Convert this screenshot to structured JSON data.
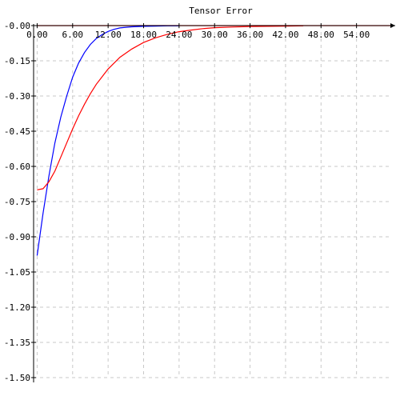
{
  "chart_data": {
    "type": "line",
    "title": "Tensor Error",
    "xlabel": "",
    "ylabel": "",
    "xlim": [
      -0.6,
      60.0
    ],
    "ylim": [
      -1.5,
      0.0
    ],
    "grid": true,
    "x_ticks": [
      0,
      6,
      12,
      18,
      24,
      30,
      36,
      42,
      48,
      54
    ],
    "x_tick_labels": [
      "0.00",
      "6.00",
      "12.00",
      "18.00",
      "24.00",
      "30.00",
      "36.00",
      "42.00",
      "48.00",
      "54.00"
    ],
    "y_ticks": [
      -0.0,
      -0.15,
      -0.3,
      -0.45,
      -0.6,
      -0.75,
      -0.9,
      -1.05,
      -1.2,
      -1.35,
      -1.5
    ],
    "y_tick_labels": [
      "-0.00",
      "-0.15",
      "-0.30",
      "-0.45",
      "-0.60",
      "-0.75",
      "-0.90",
      "-1.05",
      "-1.20",
      "-1.35",
      "-1.50"
    ],
    "series": [
      {
        "color": "#ff0000",
        "x": [
          0,
          60
        ],
        "y": [
          0.0,
          0.0
        ]
      },
      {
        "color": "#0000ff",
        "x": [
          0,
          1,
          2,
          3,
          4,
          5,
          6,
          7,
          8,
          9,
          10,
          11,
          12,
          13,
          14,
          15,
          16,
          18,
          20,
          22,
          24
        ],
        "y": [
          -0.98,
          -0.8,
          -0.64,
          -0.5,
          -0.39,
          -0.3,
          -0.22,
          -0.16,
          -0.115,
          -0.08,
          -0.055,
          -0.038,
          -0.025,
          -0.016,
          -0.01,
          -0.007,
          -0.005,
          -0.003,
          -0.002,
          -0.001,
          -0.001
        ]
      },
      {
        "color": "#ff0000",
        "x": [
          0,
          1,
          2,
          3,
          4,
          5,
          6,
          7,
          8,
          9,
          10,
          12,
          14,
          16,
          18,
          20,
          22,
          24,
          26,
          28,
          30,
          33,
          36,
          39,
          42,
          45
        ],
        "y": [
          -0.7,
          -0.695,
          -0.665,
          -0.62,
          -0.56,
          -0.5,
          -0.44,
          -0.385,
          -0.335,
          -0.29,
          -0.25,
          -0.185,
          -0.135,
          -0.1,
          -0.072,
          -0.052,
          -0.037,
          -0.026,
          -0.019,
          -0.013,
          -0.009,
          -0.006,
          -0.004,
          -0.003,
          -0.002,
          -0.001
        ]
      }
    ]
  }
}
